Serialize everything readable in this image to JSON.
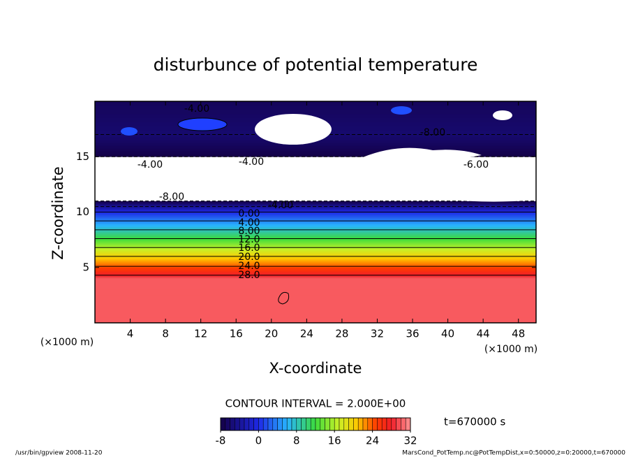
{
  "chart_data": {
    "type": "contour",
    "title": "disturbunce of potential temperature",
    "xlabel": "X-coordinate",
    "ylabel": "Z-coordinate",
    "x_unit": "(×1000 m)",
    "xlim": [
      0,
      50
    ],
    "xticks": [
      4,
      8,
      12,
      16,
      20,
      24,
      28,
      32,
      36,
      40,
      44,
      48
    ],
    "ylim": [
      0,
      20
    ],
    "yticks": [
      5,
      10,
      15
    ],
    "z": [
      0,
      4,
      4.3,
      5.1,
      6,
      6.8,
      7.6,
      8.4,
      9.2,
      10,
      10.5,
      11,
      13,
      15,
      17,
      20
    ],
    "values": [
      30,
      30,
      28,
      24,
      20,
      16,
      12,
      8,
      4,
      0,
      -4,
      -8,
      -9,
      -8,
      -6,
      -7
    ],
    "contour_labels": [
      "-4.00",
      "-8.00",
      "-4.00",
      "-4.00",
      "-6.00",
      "-8.00",
      "-4.00",
      "0.00",
      "4.00",
      "8.00",
      "12.0",
      "16.0",
      "20.0",
      "24.0",
      "28.0"
    ],
    "colorbar": {
      "lim": [
        -8,
        32
      ],
      "ticks": [
        -8,
        0,
        8,
        16,
        24,
        32
      ]
    },
    "contour_interval": "CONTOUR INTERVAL = 2.000E+00",
    "time_label": "t=670000 s",
    "footer_left": "/usr/bin/gpview  2008-11-20",
    "footer_right": "MarsCond_PotTemp.nc@PotTempDist,x=0:50000,z=0:20000,t=670000"
  }
}
